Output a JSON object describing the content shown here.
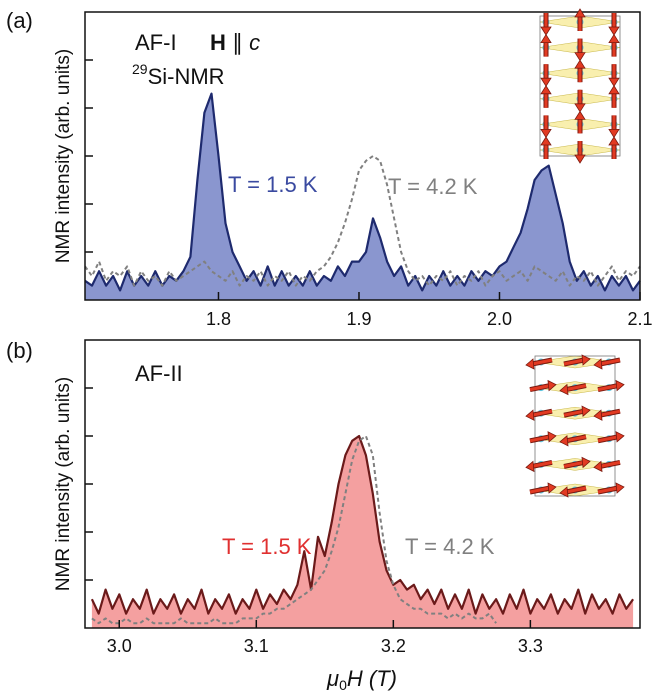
{
  "chart_data": [
    {
      "type": "line",
      "panel_label": "(a)",
      "annotations": {
        "phase": "AF-I",
        "field": {
          "vector": "H",
          "relation": "∥",
          "axis": "c"
        },
        "nucleus": {
          "mass": "29",
          "text": "Si-NMR"
        }
      },
      "ylabel": "NMR intensity (arb. units)",
      "xlim": [
        1.705,
        2.1
      ],
      "xticks": [
        1.8,
        1.9,
        {
          "value": 2,
          "label": "2.0"
        },
        2.1
      ],
      "ylim": [
        0,
        6
      ],
      "yticks": [
        1,
        2,
        3,
        4,
        5
      ],
      "x": [
        1.705,
        1.71,
        1.715,
        1.72,
        1.725,
        1.73,
        1.735,
        1.74,
        1.745,
        1.75,
        1.755,
        1.76,
        1.765,
        1.77,
        1.775,
        1.78,
        1.785,
        1.79,
        1.795,
        1.8,
        1.805,
        1.81,
        1.815,
        1.82,
        1.825,
        1.83,
        1.835,
        1.84,
        1.845,
        1.85,
        1.855,
        1.86,
        1.865,
        1.87,
        1.875,
        1.88,
        1.885,
        1.89,
        1.895,
        1.9,
        1.905,
        1.91,
        1.915,
        1.92,
        1.925,
        1.93,
        1.935,
        1.94,
        1.945,
        1.95,
        1.955,
        1.96,
        1.965,
        1.97,
        1.975,
        1.98,
        1.985,
        1.99,
        1.995,
        2.0,
        2.005,
        2.01,
        2.015,
        2.02,
        2.025,
        2.03,
        2.035,
        2.04,
        2.045,
        2.05,
        2.055,
        2.06,
        2.065,
        2.07,
        2.075,
        2.08,
        2.085,
        2.09,
        2.095,
        2.1
      ],
      "series": [
        {
          "name": "T = 1.5 K",
          "color": "#1e2a6e",
          "fill": "#8a96cf",
          "values": [
            0.4,
            0.3,
            0.6,
            0.3,
            0.5,
            0.2,
            0.6,
            0.3,
            0.5,
            0.3,
            0.6,
            0.3,
            0.5,
            0.4,
            0.6,
            0.9,
            2.5,
            3.9,
            4.3,
            3.0,
            1.6,
            1.0,
            0.7,
            0.4,
            0.6,
            0.3,
            0.7,
            0.3,
            0.6,
            0.3,
            0.5,
            0.3,
            0.6,
            0.3,
            0.5,
            0.4,
            0.7,
            0.5,
            0.8,
            0.8,
            1.0,
            1.7,
            1.3,
            0.8,
            0.5,
            0.7,
            0.3,
            0.5,
            0.2,
            0.5,
            0.3,
            0.6,
            0.3,
            0.5,
            0.3,
            0.6,
            0.4,
            0.6,
            0.5,
            0.7,
            0.8,
            1.1,
            1.4,
            1.9,
            2.5,
            2.7,
            2.8,
            2.2,
            1.6,
            0.8,
            0.4,
            0.6,
            0.3,
            0.5,
            0.2,
            0.5,
            0.3,
            0.5,
            0.2,
            0.4
          ]
        },
        {
          "name": "T = 4.2 K",
          "color": "#808080",
          "dashed": true,
          "values": [
            0.7,
            0.5,
            0.8,
            0.4,
            0.6,
            0.5,
            0.7,
            0.3,
            0.6,
            0.4,
            0.5,
            0.3,
            0.6,
            0.4,
            0.5,
            0.6,
            0.7,
            0.8,
            0.6,
            0.5,
            0.4,
            0.6,
            0.3,
            0.5,
            0.4,
            0.6,
            0.3,
            0.5,
            0.4,
            0.6,
            0.3,
            0.5,
            0.4,
            0.6,
            0.7,
            0.9,
            1.2,
            1.6,
            2.1,
            2.7,
            2.9,
            3.0,
            2.9,
            2.4,
            1.7,
            1.0,
            0.6,
            0.4,
            0.5,
            0.3,
            0.5,
            0.4,
            0.6,
            0.3,
            0.5,
            0.4,
            0.6,
            0.3,
            0.5,
            0.6,
            0.4,
            0.5,
            0.6,
            0.4,
            0.7,
            0.6,
            0.5,
            0.4,
            0.6,
            0.3,
            0.5,
            0.4,
            0.6,
            0.3,
            0.5,
            0.7,
            0.4,
            0.6,
            0.5,
            0.7
          ]
        }
      ]
    },
    {
      "type": "line",
      "panel_label": "(b)",
      "annotations": {
        "phase": "AF-II"
      },
      "ylabel": "NMR intensity (arb. units)",
      "xlabel": {
        "symbol": "μ",
        "sub": "0",
        "rest": "H (T)"
      },
      "xlim": [
        2.975,
        3.38
      ],
      "xticks": [
        {
          "value": 3,
          "label": "3.0"
        },
        3.1,
        3.2,
        3.3
      ],
      "ylim": [
        0,
        6
      ],
      "yticks": [
        1,
        2,
        3,
        4,
        5
      ],
      "x": [
        2.98,
        2.985,
        2.99,
        2.995,
        3.0,
        3.005,
        3.01,
        3.015,
        3.02,
        3.025,
        3.03,
        3.035,
        3.04,
        3.045,
        3.05,
        3.055,
        3.06,
        3.065,
        3.07,
        3.075,
        3.08,
        3.085,
        3.09,
        3.095,
        3.1,
        3.105,
        3.11,
        3.115,
        3.12,
        3.125,
        3.13,
        3.135,
        3.14,
        3.145,
        3.15,
        3.155,
        3.16,
        3.165,
        3.17,
        3.175,
        3.18,
        3.185,
        3.19,
        3.195,
        3.2,
        3.205,
        3.21,
        3.215,
        3.22,
        3.225,
        3.23,
        3.235,
        3.24,
        3.245,
        3.25,
        3.255,
        3.26,
        3.265,
        3.27,
        3.275,
        3.28,
        3.285,
        3.29,
        3.295,
        3.3,
        3.305,
        3.31,
        3.315,
        3.32,
        3.325,
        3.33,
        3.335,
        3.34,
        3.345,
        3.35,
        3.355,
        3.36,
        3.365,
        3.37,
        3.375
      ],
      "series": [
        {
          "name": "T = 1.5 K",
          "color": "#6b1a1a",
          "fill": "#f4a0a0",
          "values": [
            0.6,
            0.3,
            0.8,
            0.4,
            0.7,
            0.3,
            0.6,
            0.4,
            0.8,
            0.3,
            0.6,
            0.4,
            0.7,
            0.3,
            0.6,
            0.4,
            0.8,
            0.3,
            0.6,
            0.4,
            0.7,
            0.3,
            0.6,
            0.4,
            0.8,
            0.4,
            0.7,
            0.5,
            0.8,
            0.6,
            0.9,
            1.6,
            0.8,
            1.9,
            1.5,
            2.2,
            3.0,
            3.6,
            3.9,
            4.0,
            3.6,
            2.8,
            1.8,
            1.2,
            0.9,
            1.0,
            0.8,
            0.9,
            0.6,
            0.8,
            0.5,
            0.8,
            0.4,
            0.7,
            0.4,
            0.8,
            0.3,
            0.7,
            0.4,
            0.6,
            0.3,
            0.7,
            0.4,
            0.8,
            0.3,
            0.6,
            0.4,
            0.7,
            0.3,
            0.6,
            0.4,
            0.8,
            0.3,
            0.7,
            0.4,
            0.6,
            0.3,
            0.7,
            0.4,
            0.6
          ]
        },
        {
          "name": "T = 4.2 K",
          "color": "#808080",
          "dashed": true,
          "values": [
            0.2,
            0.1,
            0.2,
            0.1,
            0.1,
            0.2,
            0.1,
            0.1,
            0.2,
            0.1,
            0.1,
            0.1,
            0.1,
            0.2,
            0.1,
            0.1,
            0.1,
            0.1,
            0.2,
            0.1,
            0.1,
            0.1,
            0.2,
            0.2,
            0.2,
            0.3,
            0.3,
            0.4,
            0.4,
            0.5,
            0.6,
            0.7,
            0.8,
            1.0,
            1.2,
            1.6,
            2.1,
            2.8,
            3.5,
            3.9,
            4.0,
            3.6,
            2.4,
            1.4,
            0.9,
            0.6,
            0.5,
            0.4,
            0.4,
            0.3,
            0.3,
            0.3,
            0.2,
            0.3,
            0.2,
            0.3,
            0.2,
            0.2,
            0.3,
            0.1,
            null,
            null,
            null,
            null,
            null,
            null,
            null,
            null,
            null,
            null,
            null,
            null,
            null,
            null,
            null,
            null,
            null,
            null,
            null,
            null
          ]
        }
      ]
    }
  ]
}
